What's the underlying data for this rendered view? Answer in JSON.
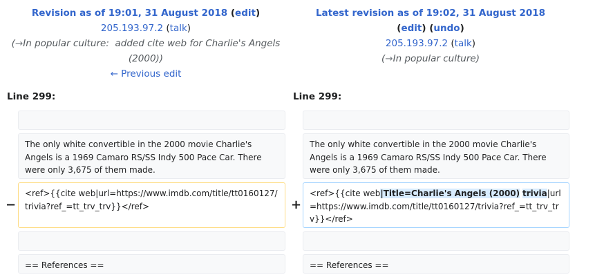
{
  "left": {
    "title_prefix": "Revision as of 19:01, 31 August 2018",
    "edit": "edit",
    "user": "205.193.97.2",
    "talk": "talk",
    "summary_arrow": "→",
    "summary_section": "In popular culture:",
    "summary_text": "added cite web for Charlie's Angels (2000)",
    "prev_link": "← Previous edit",
    "line_label": "Line 299:"
  },
  "right": {
    "title": "Latest revision as of 19:02, 31 August 2018",
    "edit": "edit",
    "undo": "undo",
    "user": "205.193.97.2",
    "talk": "talk",
    "summary_arrow": "→",
    "summary_section": "In popular culture",
    "line_label": "Line 299:"
  },
  "diff": {
    "context_para": "The only white convertible in the 2000 movie Charlie's Angels is a 1969 Camaro RS/SS Indy 500 Pace Car. There were only 3,675 of them made.",
    "deleted_line": "<ref>{{cite web|url=https://www.imdb.com/title/tt0160127/trivia?ref_=tt_trv_trv}}</ref>",
    "added_pre": "<ref>{{cite web",
    "added_hl1": "|Title=Charlie's Angels (2000)",
    "added_hl2": "trivia",
    "added_post": "|url=https://www.imdb.com/title/tt0160127/trivia?ref_=tt_trv_trv}}</ref>",
    "references_heading": "== References ==",
    "minus": "−",
    "plus": "+"
  }
}
